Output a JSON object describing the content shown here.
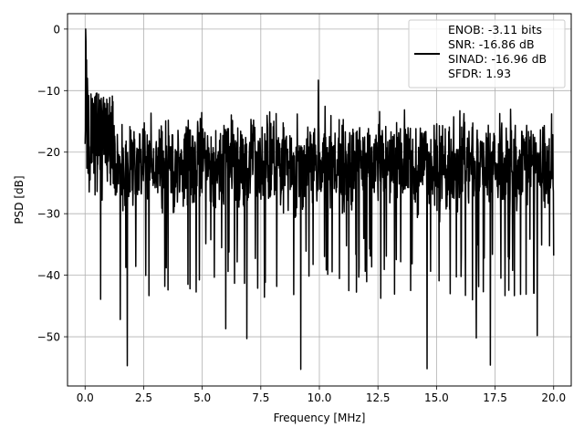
{
  "chart_data": {
    "type": "line",
    "title": "",
    "xlabel": "Frequency [MHz]",
    "ylabel": "PSD [dB]",
    "xlim": [
      -0.75,
      20.75
    ],
    "ylim": [
      -58,
      2.5
    ],
    "xticks": [
      0.0,
      2.5,
      5.0,
      7.5,
      10.0,
      12.5,
      15.0,
      17.5,
      20.0
    ],
    "xtick_labels": [
      "0.0",
      "2.5",
      "5.0",
      "7.5",
      "10.0",
      "12.5",
      "15.0",
      "17.5",
      "20.0"
    ],
    "yticks": [
      0,
      -10,
      -20,
      -30,
      -40,
      -50
    ],
    "ytick_labels": [
      "0",
      "−10",
      "−20",
      "−30",
      "−40",
      "−50"
    ],
    "grid": true,
    "legend_position": "top-right",
    "legend_entries": [
      "ENOB: -3.11 bits",
      "SNR: -16.86 dB",
      "SINAD: -16.96 dB",
      "SFDR: 1.93"
    ],
    "series": [
      {
        "color": "#000000",
        "n_points": 1600,
        "x_range": [
          0.0,
          20.0
        ],
        "floor_level_db": -22,
        "floor_spread_db": [
          -30,
          -14
        ],
        "peaks": [
          {
            "x": 0.02,
            "y": 0
          },
          {
            "x": 0.04,
            "y": -2
          },
          {
            "x": 0.06,
            "y": -5
          },
          {
            "x": 0.1,
            "y": -8
          },
          {
            "x": 9.95,
            "y": -8.3
          }
        ],
        "dips": [
          {
            "x": 1.8,
            "y": -54.7
          },
          {
            "x": 9.2,
            "y": -55.3
          },
          {
            "x": 14.6,
            "y": -55.2
          },
          {
            "x": 17.3,
            "y": -54.6
          },
          {
            "x": 19.3,
            "y": -49.8
          },
          {
            "x": 6.0,
            "y": -48.7
          },
          {
            "x": 6.9,
            "y": -50.3
          },
          {
            "x": 1.5,
            "y": -47.2
          },
          {
            "x": 16.7,
            "y": -50.2
          }
        ]
      }
    ]
  }
}
